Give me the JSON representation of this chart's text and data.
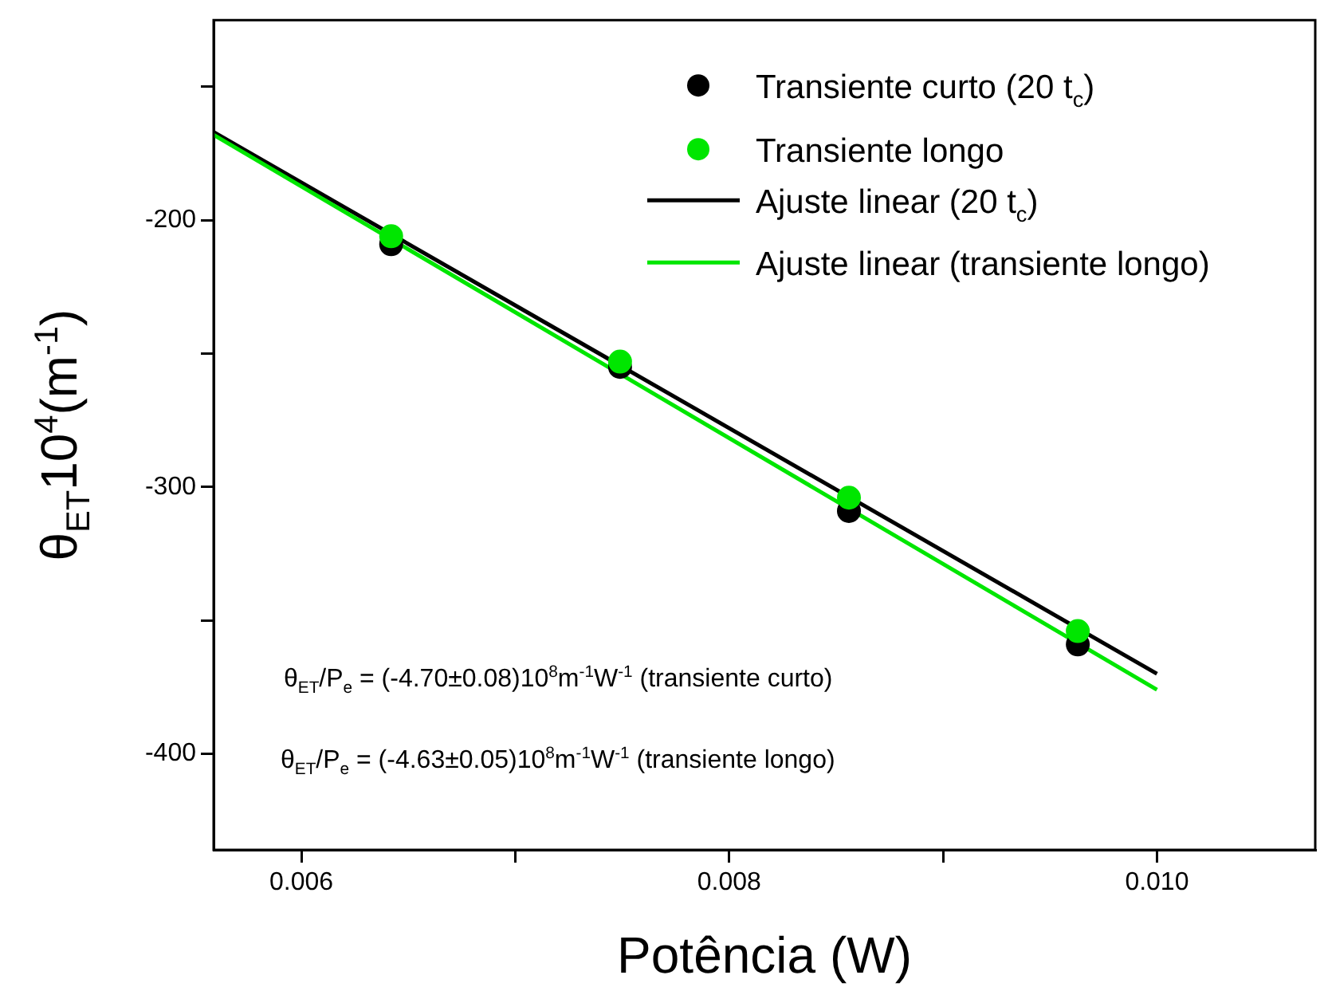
{
  "chart_data": {
    "type": "scatter",
    "xlabel": "Potência (W)",
    "ylabel": "θ$_{ET}$10$^{4}$(m$^{-1}$)",
    "xlim": [
      0.00559,
      0.01074
    ],
    "xticks": [
      0.006,
      {
        "value": 0.007,
        "label": null
      },
      0.008,
      {
        "value": 0.009,
        "label": null
      },
      {
        "value": 0.01,
        "label": "0.010"
      }
    ],
    "ylim": [
      -436,
      -125
    ],
    "yticks": [
      {
        "value": -150,
        "label": null
      },
      -200,
      {
        "value": -250,
        "label": null
      },
      -300,
      {
        "value": -350,
        "label": null
      },
      -400
    ],
    "grid": false,
    "legend": "top right",
    "series": [
      {
        "name": "Transiente curto (20 t$_{c}$)",
        "marker": "circle",
        "color": "#000000",
        "x": [
          0.00642,
          0.00749,
          0.00856,
          0.00963
        ],
        "values": [
          -209,
          -255,
          -309,
          -359
        ]
      },
      {
        "name": "Transiente longo",
        "marker": "circle",
        "color": "#00e600",
        "x": [
          0.00642,
          0.00749,
          0.00856,
          0.00963
        ],
        "values": [
          -206,
          -253,
          -304,
          -354
        ]
      },
      {
        "name": "Ajuste linear (20 t$_{c}$)",
        "type": "line",
        "marker": "none",
        "color": "#000000",
        "x": [
          0.00559,
          0.01
        ],
        "values": [
          -167,
          -370
        ]
      },
      {
        "name": "Ajuste linear (transiente longo)",
        "type": "line",
        "marker": "none",
        "color": "#00e600",
        "x": [
          0.00559,
          0.01
        ],
        "values": [
          -168,
          -376
        ]
      }
    ],
    "annotations": [
      "θ$_{ET}$/P$_{e}$ = (-4.70±0.08)10$^{8}$m$^{-1}$W$^{-1}$ (transiente curto)",
      "θ$_{ET}$/P$_{e}$ = (-4.63±0.05)10$^{8}$m$^{-1}$W$^{-1}$ (transiente longo)"
    ]
  }
}
